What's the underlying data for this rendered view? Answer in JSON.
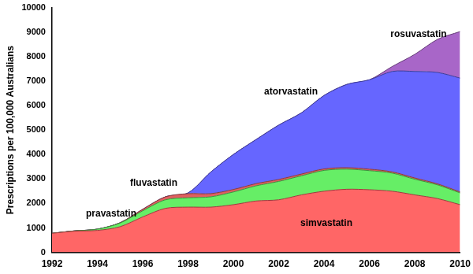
{
  "chart_data": {
    "type": "area",
    "stacked": true,
    "grid": false,
    "y_label": "Prescriptions per 100,000 Australians",
    "x": [
      1992,
      1993,
      1994,
      1995,
      1996,
      1997,
      1998,
      1999,
      2000,
      2001,
      2002,
      2003,
      2004,
      2005,
      2006,
      2007,
      2008,
      2009,
      2010
    ],
    "xlim": [
      1992,
      2010
    ],
    "xticks": [
      1992,
      1994,
      1996,
      1998,
      2000,
      2002,
      2004,
      2006,
      2008,
      2010
    ],
    "ylim": [
      0,
      10000
    ],
    "yticks": [
      0,
      1000,
      2000,
      3000,
      4000,
      5000,
      6000,
      7000,
      8000,
      9000,
      10000
    ],
    "series": [
      {
        "name": "simvastatin",
        "color": "#ff6666",
        "values": [
          780,
          870,
          900,
          1050,
          1450,
          1800,
          1850,
          1850,
          1950,
          2100,
          2150,
          2350,
          2500,
          2580,
          2560,
          2500,
          2350,
          2200,
          1950
        ]
      },
      {
        "name": "pravastatin",
        "color": "#66ee66",
        "values": [
          0,
          10,
          50,
          150,
          250,
          350,
          380,
          420,
          520,
          620,
          750,
          780,
          850,
          820,
          780,
          740,
          640,
          560,
          480
        ]
      },
      {
        "name": "fluvastatin",
        "color": "#e06060",
        "values": [
          0,
          0,
          0,
          10,
          60,
          120,
          170,
          130,
          100,
          90,
          80,
          70,
          60,
          60,
          60,
          50,
          50,
          40,
          40
        ]
      },
      {
        "name": "atorvastatin",
        "color": "#6666ff",
        "values": [
          0,
          0,
          0,
          0,
          0,
          0,
          30,
          880,
          1430,
          1800,
          2220,
          2500,
          3000,
          3400,
          3650,
          4100,
          4350,
          4550,
          4650
        ]
      },
      {
        "name": "rosuvastatin",
        "color": "#a866c8",
        "values": [
          0,
          0,
          0,
          0,
          0,
          0,
          0,
          0,
          0,
          0,
          0,
          0,
          0,
          0,
          0,
          200,
          700,
          1350,
          1900
        ]
      }
    ]
  }
}
